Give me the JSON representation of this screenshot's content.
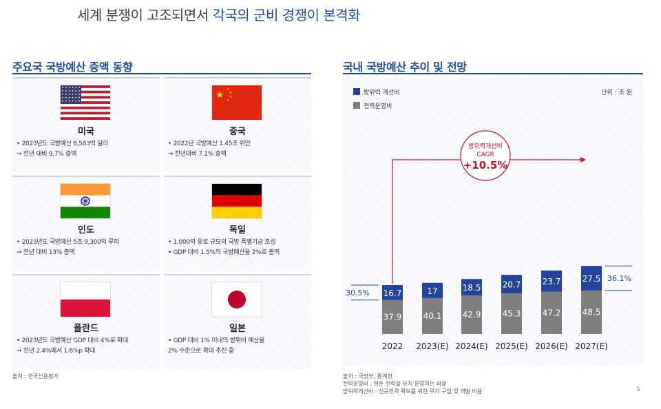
{
  "header": {
    "title_part1": "세계 분쟁이 고조되면서",
    "title_part2": "각국의 군비 경쟁이 본격화"
  },
  "left": {
    "section_title": "주요국 국방예산 증액 동향",
    "countries": [
      {
        "name": "미국",
        "flag": "us-flag",
        "info": [
          "• 2023년도 국방예산 8,583억 달러",
          "   ⇒ 전년 대비 9.7% 증액"
        ]
      },
      {
        "name": "중국",
        "flag": "china-flag",
        "info": [
          "• 2022년 국방예산 1.45조 위안",
          "   ⇒ 전년대비 7.1% 증액"
        ]
      },
      {
        "name": "인도",
        "flag": "india-flag",
        "info": [
          "• 2023년도 국방예산 5조 9,300억 루피",
          "   ⇒ 전년 대비 13% 증액"
        ]
      },
      {
        "name": "독일",
        "flag": "germany-flag",
        "info": [
          "• 1,000억 유로 규모의 국방 특별기금 조성",
          "• GDP 대비 1.5%의 국방예산을 2%로 증액"
        ]
      },
      {
        "name": "폴란드",
        "flag": "poland-flag",
        "info": [
          "• 2023년도 국방예산 GDP 대비 4%로 확대",
          "   ⇒ 전년 2.4%에서 1.6%p 확대"
        ]
      },
      {
        "name": "일본",
        "flag": "japan-flag",
        "info": [
          "• GDP 대비 1% 이내의 방위비 예산을",
          "   2% 수준으로 확대 추진 중"
        ]
      }
    ],
    "source": "출처 : 한국신용평가"
  },
  "right": {
    "section_title": "국내 국방예산 추이 및 전망",
    "source_lines": [
      "출처 : 국방부, 통계청",
      "전력운영비 : 현존 전력을 유지 운영하는 비용",
      "방위력개선비 : 신규전력 확보를 위한 무기 구입 및 개발 비용"
    ]
  },
  "chart_data": {
    "type": "bar",
    "stacked": true,
    "categories": [
      "2022",
      "2023(E)",
      "2024(E)",
      "2025(E)",
      "2026(E)",
      "2027(E)"
    ],
    "series": [
      {
        "name": "전력운영비",
        "values": [
          37.9,
          40.1,
          42.9,
          45.3,
          47.2,
          48.5
        ],
        "color": "#7f7f7f"
      },
      {
        "name": "방위력 개선비",
        "values": [
          16.7,
          17,
          18.5,
          20.7,
          23.7,
          27.5
        ],
        "color": "#22449a"
      }
    ],
    "unit": "단위 : 조 원",
    "legend": "top-left",
    "annotations": {
      "share_2022": "30.5%",
      "share_2027": "36.1%",
      "cagr_line1": "방위력개선비",
      "cagr_line2": "CAGR",
      "cagr_value": "+10.5%"
    }
  },
  "page_number": "5"
}
